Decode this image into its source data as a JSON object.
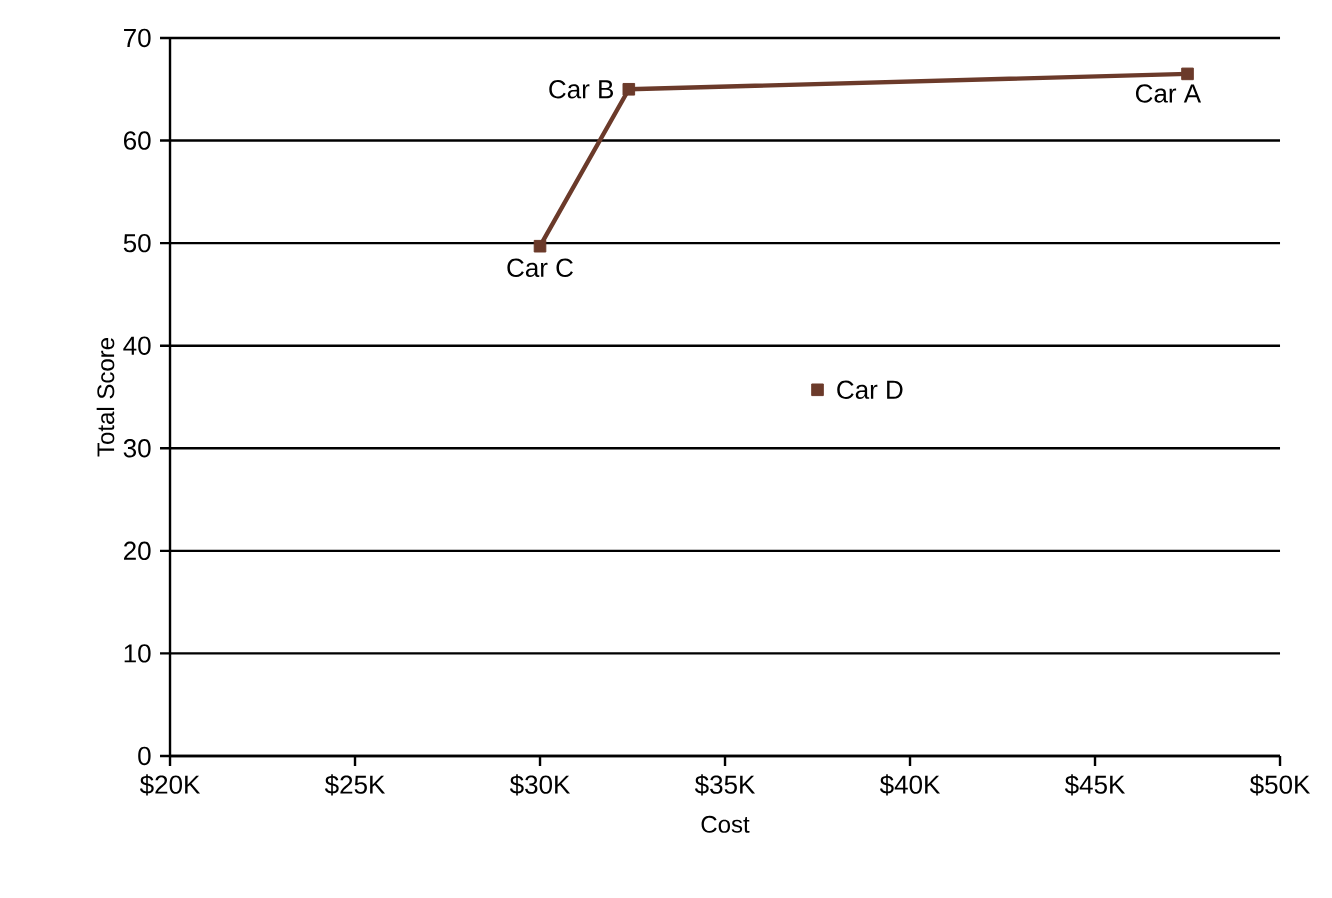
{
  "chart_data": {
    "type": "scatter",
    "xlabel": "Cost",
    "ylabel": "Total Score",
    "xlim": [
      20000,
      50000
    ],
    "ylim": [
      0,
      70
    ],
    "xticks": [
      {
        "value": 20000,
        "label": "$20K"
      },
      {
        "value": 25000,
        "label": "$25K"
      },
      {
        "value": 30000,
        "label": "$30K"
      },
      {
        "value": 35000,
        "label": "$35K"
      },
      {
        "value": 40000,
        "label": "$40K"
      },
      {
        "value": 45000,
        "label": "$45K"
      },
      {
        "value": 50000,
        "label": "$50K"
      }
    ],
    "yticks": [
      0,
      10,
      20,
      30,
      40,
      50,
      60,
      70
    ],
    "grid": "y",
    "marker": "square",
    "line_style": "solid",
    "series": [
      {
        "type": "line",
        "x": [
          30000,
          32400,
          47500
        ],
        "values": [
          49.7,
          65,
          66.5
        ],
        "color": "#6b3a2a"
      },
      {
        "x": [
          37500
        ],
        "values": [
          35.7
        ],
        "color": "#6b3a2a"
      }
    ],
    "annotations": [
      {
        "text": "Car A",
        "x": 47500,
        "y": 66.5
      },
      {
        "text": "Car B",
        "x": 32400,
        "y": 65
      },
      {
        "text": "Car C",
        "x": 30000,
        "y": 49.7
      },
      {
        "text": "Car D",
        "x": 37500,
        "y": 35.7
      }
    ]
  }
}
